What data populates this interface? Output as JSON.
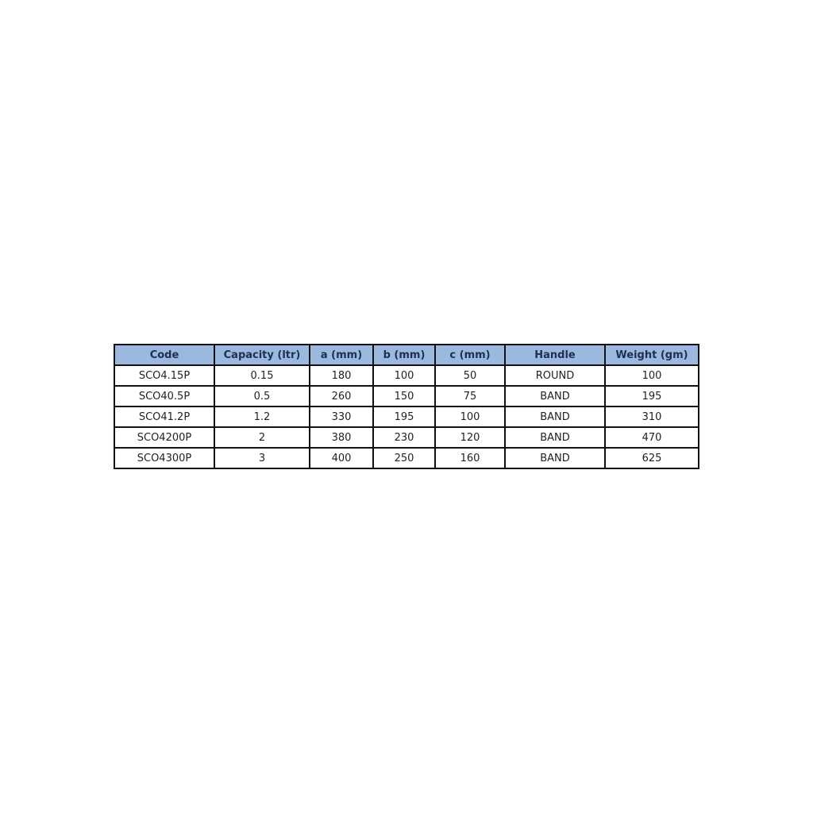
{
  "table": {
    "headers": [
      "Code",
      "Capacity (ltr)",
      "a (mm)",
      "b (mm)",
      "c (mm)",
      "Handle",
      "Weight (gm)"
    ],
    "rows": [
      [
        "SCO4.15P",
        "0.15",
        "180",
        "100",
        "50",
        "ROUND",
        "100"
      ],
      [
        "SCO40.5P",
        "0.5",
        "260",
        "150",
        "75",
        "BAND",
        "195"
      ],
      [
        "SCO41.2P",
        "1.2",
        "330",
        "195",
        "100",
        "BAND",
        "310"
      ],
      [
        "SCO4200P",
        "2",
        "380",
        "230",
        "120",
        "BAND",
        "470"
      ],
      [
        "SCO4300P",
        "3",
        "400",
        "250",
        "160",
        "BAND",
        "625"
      ]
    ]
  }
}
